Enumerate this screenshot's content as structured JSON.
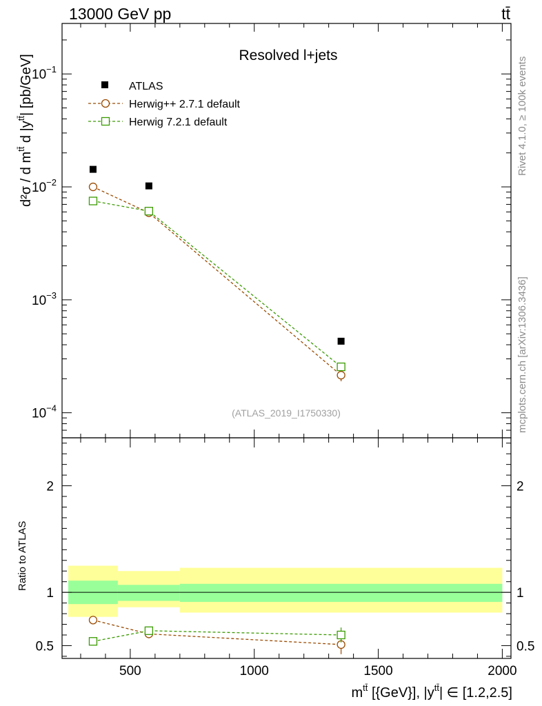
{
  "header": {
    "left_label": "13000 GeV pp",
    "right_label": "tt̄"
  },
  "side_labels": {
    "rivet": "Rivet 4.1.0, ≥ 100k events",
    "mcplots": "mcplots.cern.ch [arXiv:1306.3436]"
  },
  "colors": {
    "atlas": "#000000",
    "herwigpp": "#9a4a00",
    "herwig7": "#3a9a00",
    "band_outer": "#ffff99",
    "band_inner": "#99ff99"
  },
  "chart_data": [
    {
      "type": "scatter",
      "title": "Resolved l+jets",
      "analysis_label": "(ATLAS_2019_I1750330)",
      "ylabel_parts": {
        "d2sigma": "d²σ / d m",
        "tt": "tt̄",
        "mid": " d |y",
        "unit": "| [pb/GeV]"
      },
      "yscale": "log",
      "ylim": [
        6e-05,
        0.28
      ],
      "xlim": [
        225,
        2035
      ],
      "yticks": [
        {
          "value": 0.1,
          "base": "10",
          "exp": "−1"
        },
        {
          "value": 0.01,
          "base": "10",
          "exp": "−2"
        },
        {
          "value": 0.001,
          "base": "10",
          "exp": "−3"
        },
        {
          "value": 0.0001,
          "base": "10",
          "exp": "−4"
        }
      ],
      "x": [
        350,
        575,
        1350
      ],
      "series": [
        {
          "name": "ATLAS",
          "marker": "filled-square",
          "values": [
            0.0143,
            0.0102,
            0.00043
          ]
        },
        {
          "name": "Herwig++ 2.7.1 default",
          "marker": "open-circle",
          "style": "dashed",
          "values": [
            0.01,
            0.0059,
            0.000215
          ],
          "errors": [
            0.0003,
            0.0002,
            2.5e-05
          ]
        },
        {
          "name": "Herwig 7.2.1 default",
          "marker": "open-square",
          "style": "dashed",
          "values": [
            0.0075,
            0.0061,
            0.000255
          ],
          "errors": [
            0.0002,
            0.0002,
            2e-05
          ]
        }
      ]
    },
    {
      "type": "scatter",
      "ylabel": "Ratio to ATLAS",
      "ylim": [
        0.38,
        2.45
      ],
      "xlim": [
        225,
        2035
      ],
      "yticks": [
        0.5,
        1,
        2
      ],
      "ytick_labels": [
        "0.5",
        "1",
        "2"
      ],
      "xticks": [
        500,
        1000,
        1500,
        2000
      ],
      "xtick_labels": [
        "500",
        "1000",
        "1500",
        "2000"
      ],
      "xlabel_parts": {
        "m": "m",
        "tt": "tt̄",
        "mid": " [{GeV}], |y",
        "range": "| ∈ [1.2,2.5]"
      },
      "bands": [
        {
          "x_low": 250,
          "x_high": 450,
          "inner": [
            0.89,
            1.11
          ],
          "outer": [
            0.77,
            1.25
          ]
        },
        {
          "x_low": 450,
          "x_high": 700,
          "inner": [
            0.92,
            1.07
          ],
          "outer": [
            0.86,
            1.2
          ]
        },
        {
          "x_low": 700,
          "x_high": 2000,
          "inner": [
            0.91,
            1.08
          ],
          "outer": [
            0.81,
            1.23
          ]
        }
      ],
      "x": [
        350,
        575,
        1350
      ],
      "series": [
        {
          "name": "Herwig++ 2.7.1 default",
          "marker": "open-circle",
          "values": [
            0.74,
            0.61,
            0.51
          ],
          "errors": [
            0.03,
            0.04,
            0.09
          ]
        },
        {
          "name": "Herwig 7.2.1 default",
          "marker": "open-square",
          "values": [
            0.54,
            0.64,
            0.6
          ],
          "errors": [
            0.03,
            0.03,
            0.07
          ]
        }
      ]
    }
  ]
}
